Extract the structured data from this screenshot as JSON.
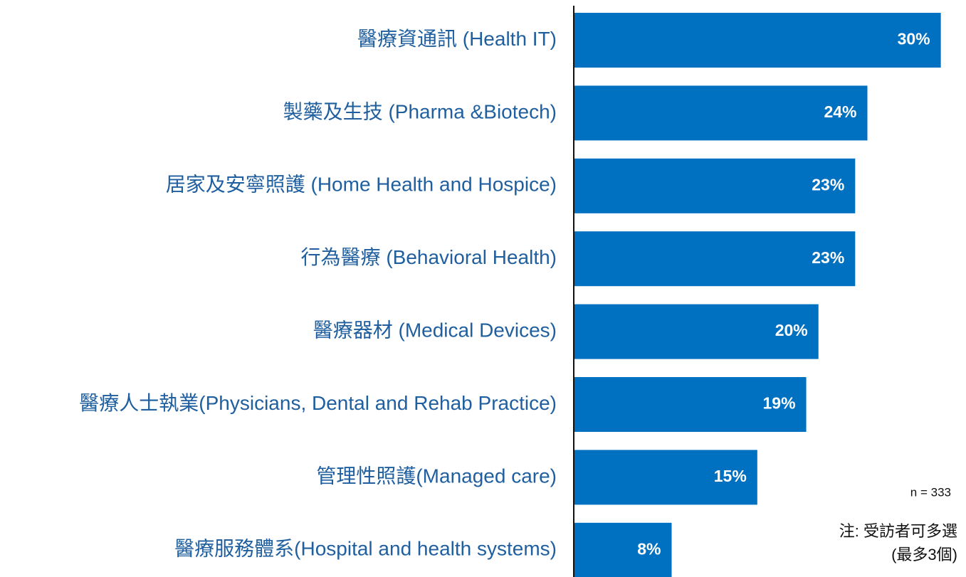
{
  "chart_data": {
    "type": "bar",
    "orientation": "horizontal",
    "categories": [
      "醫療資通訊 (Health IT)",
      "製藥及生技 (Pharma &Biotech)",
      "居家及安寧照護 (Home Health and Hospice)",
      "行為醫療 (Behavioral Health)",
      "醫療器材 (Medical Devices)",
      "醫療人士執業(Physicians, Dental and Rehab Practice)",
      "管理性照護(Managed care)",
      "醫療服務體系(Hospital and health systems)"
    ],
    "values": [
      30,
      24,
      23,
      23,
      20,
      19,
      15,
      8
    ],
    "value_labels": [
      "30%",
      "24%",
      "23%",
      "23%",
      "20%",
      "19%",
      "15%",
      "8%"
    ],
    "color": "#0070c0",
    "xlim": [
      0,
      32
    ],
    "annotations": [
      "n = 333",
      "注: 受訪者可多選",
      "(最多3個)"
    ]
  }
}
